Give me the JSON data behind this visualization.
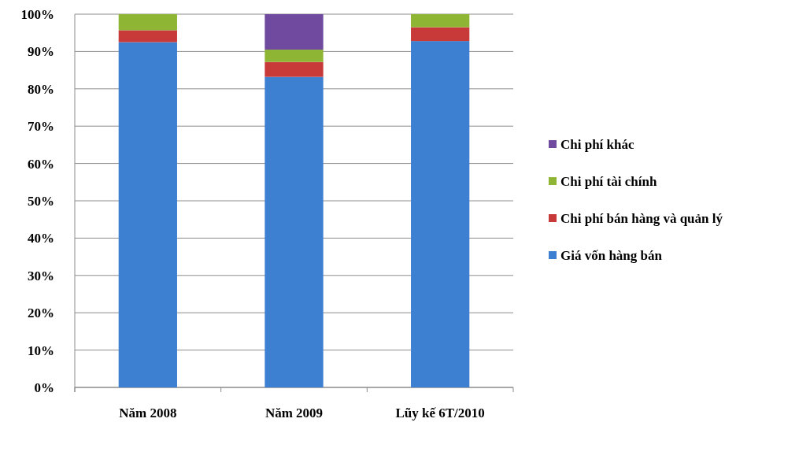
{
  "chart_data": {
    "type": "bar",
    "stacked": true,
    "categories": [
      "Năm 2008",
      "Năm 2009",
      "Lũy kế 6T/2010"
    ],
    "series": [
      {
        "name": "Giá vốn hàng bán",
        "color": "#3d7fd0",
        "values": [
          92.5,
          83.2,
          92.8
        ]
      },
      {
        "name": "Chi phí bán hàng và quản lý",
        "color": "#c83a3a",
        "values": [
          3.2,
          4,
          3.7
        ]
      },
      {
        "name": "Chi phí tài chính",
        "color": "#8fb534",
        "values": [
          4.3,
          3.3,
          3.5
        ]
      },
      {
        "name": "Chi phí khác",
        "color": "#6f4a9e",
        "values": [
          0,
          9.5,
          0
        ]
      }
    ],
    "ylim": [
      0,
      100
    ],
    "yticks": [
      {
        "value": 0,
        "label": "0%"
      },
      {
        "value": 10,
        "label": "10%"
      },
      {
        "value": 20,
        "label": "20%"
      },
      {
        "value": 30,
        "label": "30%"
      },
      {
        "value": 40,
        "label": "40%"
      },
      {
        "value": 50,
        "label": "50%"
      },
      {
        "value": 60,
        "label": "60%"
      },
      {
        "value": 70,
        "label": "70%"
      },
      {
        "value": 80,
        "label": "80%"
      },
      {
        "value": 90,
        "label": "90%"
      },
      {
        "value": 100,
        "label": "100%"
      }
    ],
    "grid": "y",
    "legend": "right"
  }
}
